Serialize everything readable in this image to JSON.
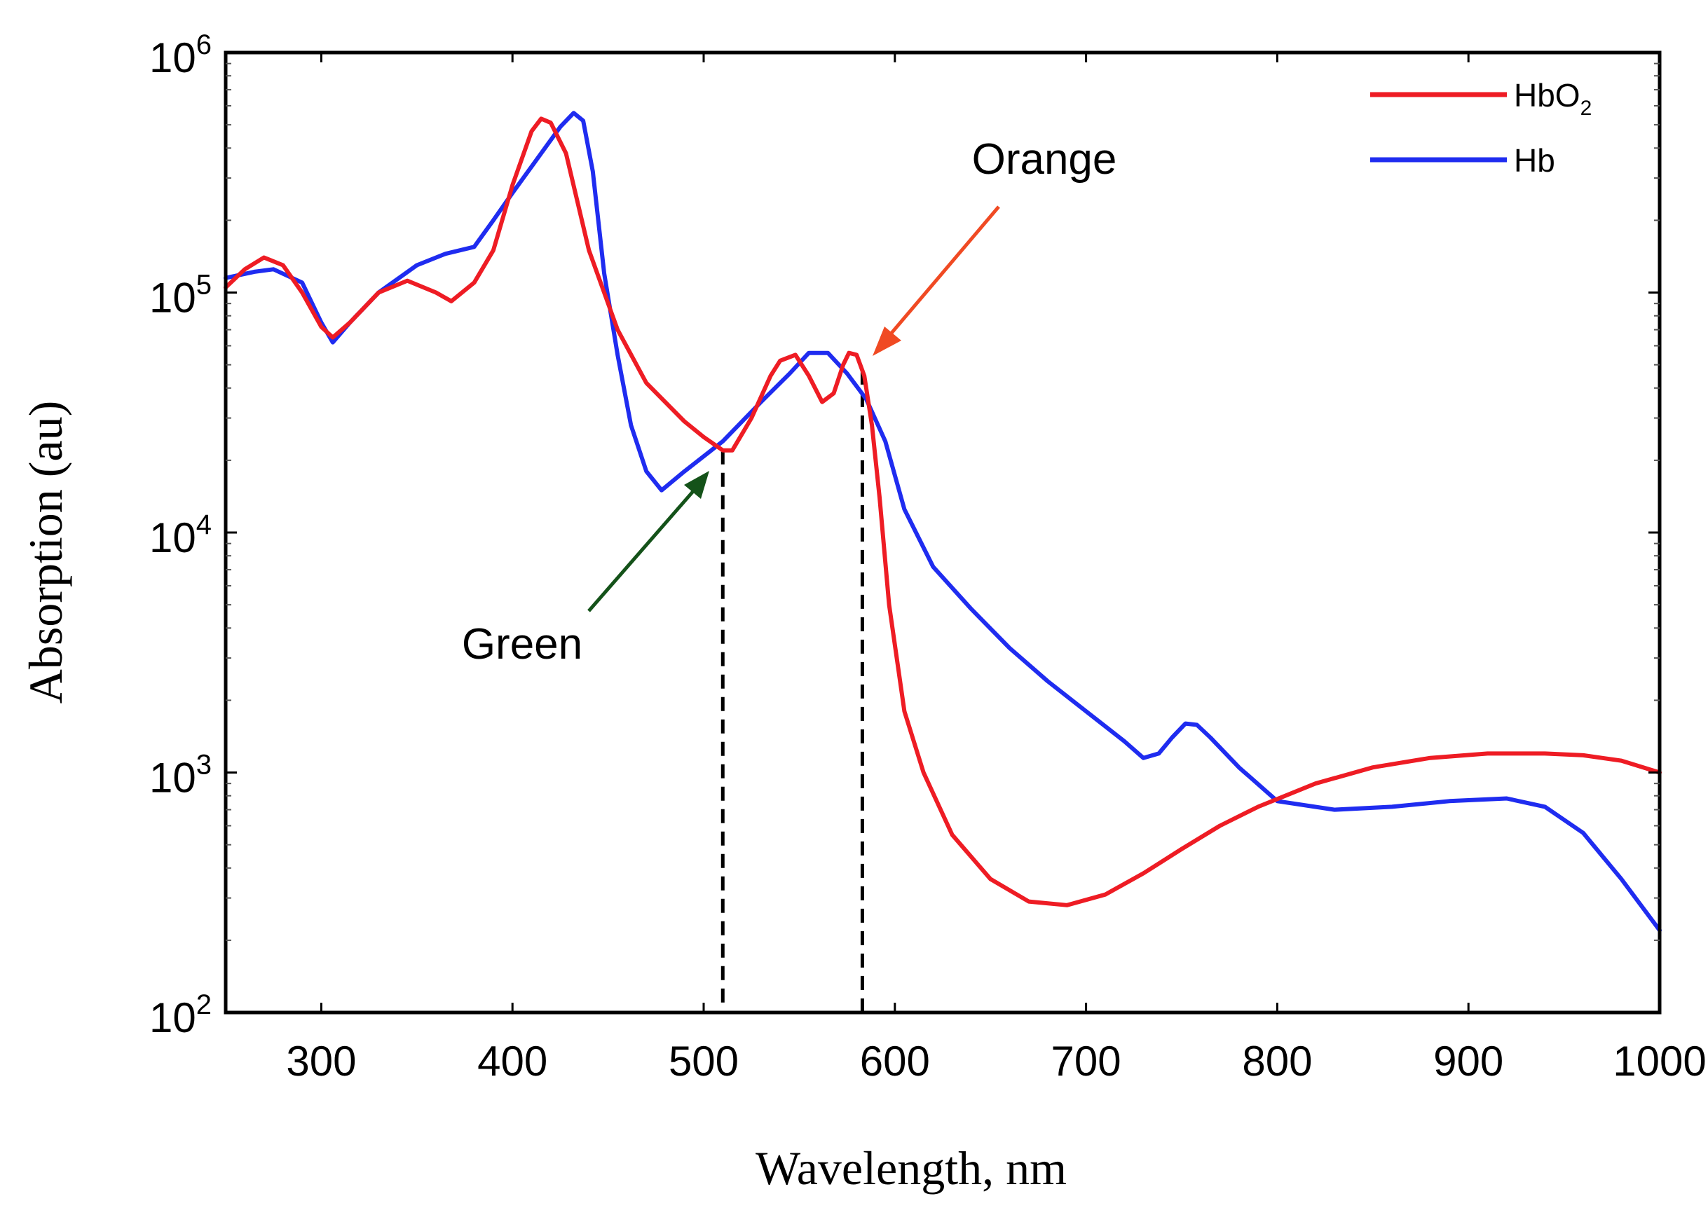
{
  "chart_data": {
    "type": "line",
    "title": "",
    "xlabel": "Wavelength, nm",
    "ylabel": "Absorption (au)",
    "xlim": [
      250,
      1000
    ],
    "ylim": [
      100,
      1000000
    ],
    "yscale": "log",
    "x_ticks": [
      {
        "value": 300,
        "label": "300"
      },
      {
        "value": 400,
        "label": "400"
      },
      {
        "value": 500,
        "label": "500"
      },
      {
        "value": 600,
        "label": "600"
      },
      {
        "value": 700,
        "label": "700"
      },
      {
        "value": 800,
        "label": "800"
      },
      {
        "value": 900,
        "label": "900"
      },
      {
        "value": 1000,
        "label": "1000"
      }
    ],
    "y_ticks": [
      {
        "value": 100,
        "base": "10",
        "exp": "2"
      },
      {
        "value": 1000,
        "base": "10",
        "exp": "3"
      },
      {
        "value": 10000,
        "base": "10",
        "exp": "4"
      },
      {
        "value": 100000,
        "base": "10",
        "exp": "5"
      },
      {
        "value": 1000000,
        "base": "10",
        "exp": "6"
      }
    ],
    "grid": false,
    "legend_position": "top-right",
    "series": [
      {
        "name": "HbO2",
        "label_main": "HbO",
        "label_sub": "2",
        "color": "#ee1c24",
        "x": [
          250,
          260,
          270,
          280,
          290,
          300,
          306,
          315,
          330,
          345,
          360,
          368,
          380,
          390,
          400,
          410,
          415,
          420,
          428,
          440,
          455,
          470,
          490,
          500,
          510,
          515,
          525,
          535,
          540,
          548,
          555,
          562,
          568,
          573,
          576,
          580,
          584,
          588,
          592,
          597,
          605,
          615,
          630,
          650,
          670,
          690,
          710,
          730,
          750,
          770,
          790,
          820,
          850,
          880,
          910,
          940,
          960,
          980,
          1000
        ],
        "y": [
          105000,
          125000,
          140000,
          130000,
          100000,
          72000,
          65000,
          75000,
          100000,
          112000,
          100000,
          92000,
          110000,
          150000,
          280000,
          470000,
          530000,
          510000,
          380000,
          150000,
          70000,
          42000,
          29000,
          25000,
          22000,
          22000,
          30000,
          45000,
          52000,
          55000,
          45000,
          35000,
          38000,
          50000,
          56000,
          55000,
          45000,
          28000,
          14000,
          5000,
          1800,
          1000,
          550,
          360,
          290,
          280,
          310,
          380,
          480,
          600,
          720,
          900,
          1050,
          1150,
          1200,
          1200,
          1180,
          1120,
          1000
        ]
      },
      {
        "name": "Hb",
        "label_main": "Hb",
        "label_sub": "",
        "color": "#1f2cf0",
        "x": [
          250,
          265,
          275,
          290,
          300,
          306,
          315,
          330,
          350,
          365,
          380,
          390,
          400,
          415,
          425,
          432,
          437,
          442,
          448,
          455,
          462,
          470,
          478,
          490,
          510,
          530,
          545,
          555,
          565,
          575,
          585,
          595,
          605,
          620,
          640,
          660,
          680,
          700,
          720,
          730,
          738,
          745,
          752,
          758,
          765,
          780,
          800,
          830,
          860,
          890,
          920,
          940,
          960,
          980,
          1000
        ],
        "y": [
          115000,
          122000,
          125000,
          110000,
          75000,
          62000,
          75000,
          100000,
          130000,
          145000,
          155000,
          200000,
          260000,
          380000,
          490000,
          560000,
          520000,
          320000,
          120000,
          55000,
          28000,
          18000,
          15000,
          18000,
          24000,
          35000,
          46000,
          56000,
          56000,
          46000,
          36000,
          24000,
          12500,
          7200,
          4800,
          3300,
          2400,
          1800,
          1350,
          1150,
          1200,
          1400,
          1600,
          1580,
          1400,
          1050,
          760,
          700,
          720,
          760,
          780,
          720,
          560,
          360,
          220
        ]
      }
    ],
    "annotations": [
      {
        "text": "Orange",
        "color": "#f04a23",
        "points_to_x": 583
      },
      {
        "text": "Green",
        "color": "#145219",
        "points_to_x": 505
      }
    ],
    "reference_lines": [
      {
        "x": 510,
        "style": "dashed"
      },
      {
        "x": 583,
        "style": "dashed"
      }
    ]
  }
}
